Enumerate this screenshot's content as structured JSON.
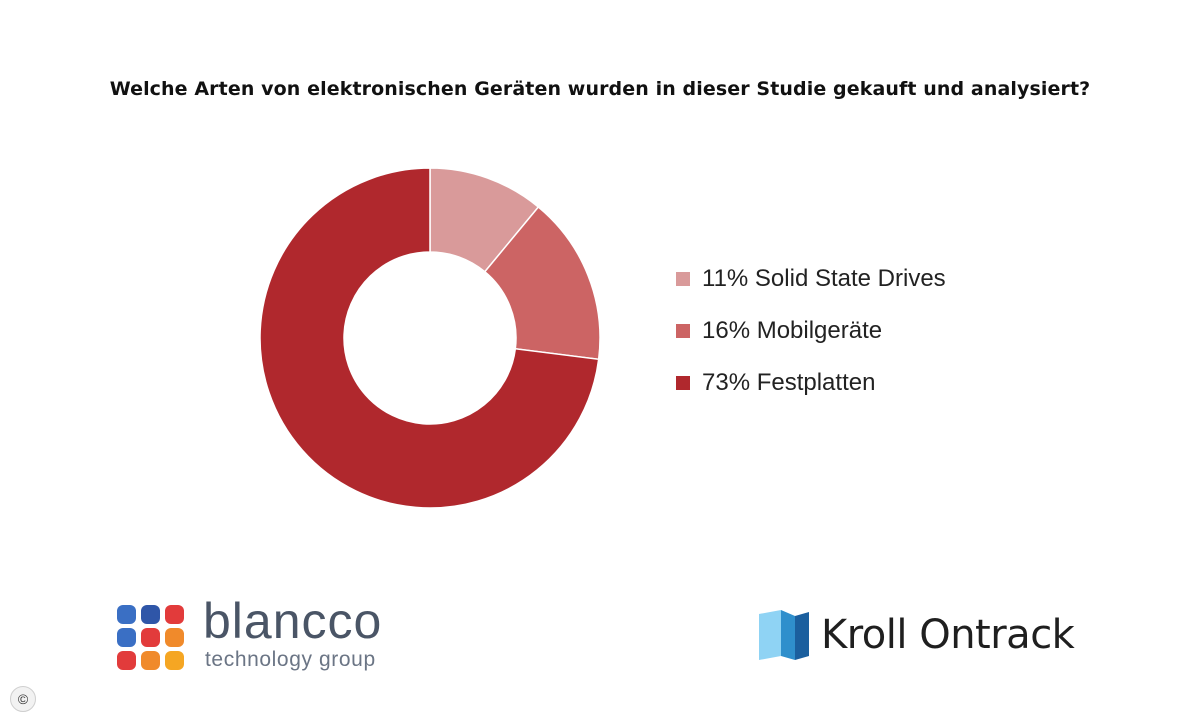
{
  "title": "Welche Arten von elektronischen Geräten wurden in dieser Studie gekauft und analysiert?",
  "chart_data": {
    "type": "pie",
    "donut": true,
    "title": "Welche Arten von elektronischen Geräten wurden in dieser Studie gekauft und analysiert?",
    "legend_position": "right",
    "slices": [
      {
        "label": "Solid State Drives",
        "value": 11,
        "legend_text": "11% Solid State Drives",
        "color": "#d99a9a"
      },
      {
        "label": "Mobilgeräte",
        "value": 16,
        "legend_text": "16% Mobilgeräte",
        "color": "#cc6464"
      },
      {
        "label": "Festplatten",
        "value": 73,
        "legend_text": "73% Festplatten",
        "color": "#b0282d"
      }
    ]
  },
  "logos": {
    "left": {
      "name": "blancco",
      "subtitle": "technology group",
      "dot_colors": [
        "#3a6fc4",
        "#2f56a8",
        "#e23b3b",
        "#3a6fc4",
        "#e23b3b",
        "#f08a2b",
        "#e23b3b",
        "#f08a2b",
        "#f5a623"
      ]
    },
    "right": {
      "name": "Kroll Ontrack",
      "mark_colors": [
        "#8fd3f4",
        "#2f8fcc",
        "#1b5f9e"
      ]
    }
  },
  "copyright_mark": "©"
}
